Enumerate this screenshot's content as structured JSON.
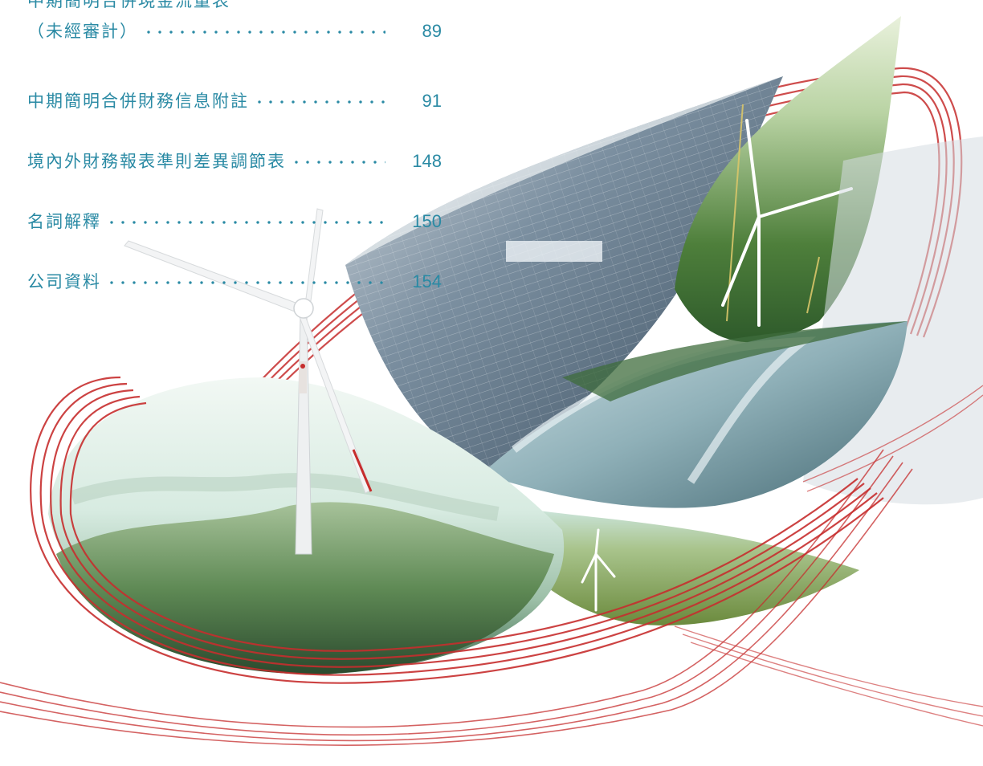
{
  "toc": {
    "entries": [
      {
        "line1": "中期簡明合併現金流量表",
        "title": "（未經審計）",
        "page": "89"
      },
      {
        "title": "中期簡明合併財務信息附註",
        "page": "91"
      },
      {
        "title": "境內外財務報表準則差異調節表",
        "page": "148"
      },
      {
        "title": "名詞解釋",
        "page": "150"
      },
      {
        "title": "公司資料",
        "page": "154"
      }
    ]
  },
  "colors": {
    "toc_text": "#2a8aa4",
    "ribbon_red": "#c62d2d",
    "leaf_green": "#4e7f3b",
    "sky_mint": "#cfe9d6"
  },
  "icons": [
    "wind-turbine-icon",
    "solar-panel-field",
    "red-ribbon-swirl"
  ]
}
